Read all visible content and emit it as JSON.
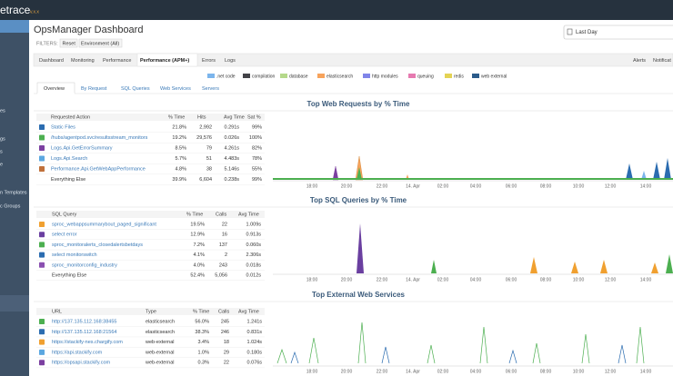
{
  "app": {
    "logo": "etrace",
    "version": "v.x.x"
  },
  "sidebar": [
    "es",
    "gs",
    "s",
    "e",
    "n Templates",
    "c Groups"
  ],
  "header": {
    "title": "OpsManager Dashboard",
    "date_range": "Last Day"
  },
  "filters": {
    "label": "FILTERS:",
    "reset": "Reset",
    "environment": "Environment (All)"
  },
  "tabs": [
    "Dashboard",
    "Monitoring",
    "Performance",
    "Performance (APM+)",
    "Errors",
    "Logs"
  ],
  "right_tabs": [
    "Alerts",
    "Notificat"
  ],
  "legend": [
    {
      "name": ".net code",
      "color": "#7cb5ec"
    },
    {
      "name": "compilation",
      "color": "#434348"
    },
    {
      "name": "database",
      "color": "#b5d98b"
    },
    {
      "name": "elasticsearch",
      "color": "#f7a35c"
    },
    {
      "name": "http modules",
      "color": "#8085e9"
    },
    {
      "name": "queuing",
      "color": "#e67ab0"
    },
    {
      "name": "redis",
      "color": "#e4d354"
    },
    {
      "name": "web external",
      "color": "#2b5b8a"
    }
  ],
  "subtabs": [
    "Overview",
    "By Request",
    "SQL Queries",
    "Web Services",
    "Servers"
  ],
  "time_axis": [
    "18:00",
    "20:00",
    "22:00",
    "14. Apr",
    "02:00",
    "04:00",
    "06:00",
    "08:00",
    "10:00",
    "12:00",
    "14:00"
  ],
  "sections": [
    {
      "title": "Top Web Requests by % Time",
      "columns": [
        "Requested Action",
        "% Time",
        "Hits",
        "Avg Time",
        "Sat %"
      ],
      "rows": [
        [
          "Static Files",
          "21.8%",
          "2,992",
          "0.291s",
          "99%"
        ],
        [
          "/hubs/agentpod.svc/resultsstream_monitors",
          "19.2%",
          "29,576",
          "0.026s",
          "100%"
        ],
        [
          "Logs.Api.GetErrorSummary",
          "8.5%",
          "79",
          "4.261s",
          "82%"
        ],
        [
          "Logs.Api.Search",
          "5.7%",
          "51",
          "4.483s",
          "78%"
        ],
        [
          "Performance.Api.GetWebAppPerformance",
          "4.8%",
          "38",
          "5.146s",
          "55%"
        ],
        [
          "Everything Else",
          "39.9%",
          "6,604",
          "0.238s",
          "99%"
        ]
      ],
      "row_colors": [
        "#2b6cb0",
        "#4caf50",
        "#7b3fa0",
        "#5ba7e0",
        "#c0703a"
      ]
    },
    {
      "title": "Top SQL Queries by % Time",
      "columns": [
        "SQL Query",
        "% Time",
        "Calls",
        "Avg Time"
      ],
      "rows": [
        [
          "sproc_webappsummarybout_paged_significant",
          "19.5%",
          "22",
          "1.009s"
        ],
        [
          "select error",
          "12.9%",
          "16",
          "0.913s"
        ],
        [
          "sproc_monitoralerts_closedalertsbetdays",
          "7.2%",
          "137",
          "0.060s"
        ],
        [
          "select monitorswitch",
          "4.1%",
          "2",
          "2.306s"
        ],
        [
          "sproc_monitorconfig_industry",
          "4.0%",
          "243",
          "0.018s"
        ],
        [
          "Everything Else",
          "52.4%",
          "5,056",
          "0.012s"
        ]
      ],
      "row_colors": [
        "#f0a030",
        "#6a3fa0",
        "#4caf50",
        "#2b6cb0",
        "#8a4fb0"
      ]
    },
    {
      "title": "Top External Web Services",
      "columns": [
        "URL",
        "Type",
        "% Time",
        "Calls",
        "Avg Time"
      ],
      "rows": [
        [
          "http://137.135.112.168:38455",
          "elasticsearch",
          "56.0%",
          "245",
          "1.241s"
        ],
        [
          "http://137.135.112.168:21564",
          "elasticsearch",
          "38.3%",
          "246",
          "0.831s"
        ],
        [
          "https://stackify-nes.chargify.com",
          "web-external",
          "3.4%",
          "18",
          "1.024s"
        ],
        [
          "https://api.stackify.com",
          "web-external",
          "1.0%",
          "29",
          "0.180s"
        ],
        [
          "https://opsapi.stackify.com",
          "web-external",
          "0.3%",
          "22",
          "0.076s"
        ]
      ],
      "row_colors": [
        "#4caf50",
        "#2b6cb0",
        "#f0a030",
        "#5ba7e0",
        "#7b3fa0"
      ]
    }
  ]
}
